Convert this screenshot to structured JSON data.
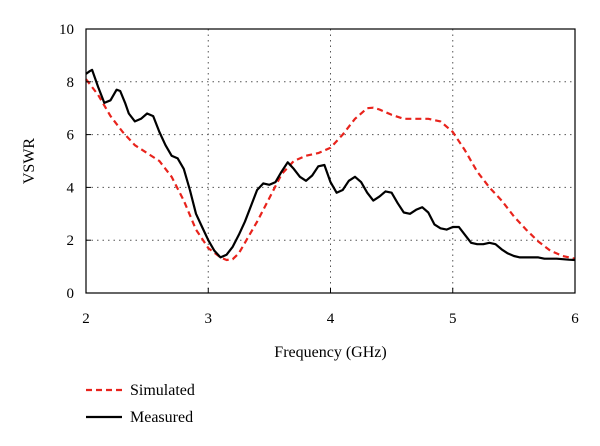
{
  "chart_data": {
    "type": "line",
    "title": "",
    "xlabel": "Frequency (GHz)",
    "ylabel": "VSWR",
    "xlim": [
      2,
      6
    ],
    "ylim": [
      0,
      10
    ],
    "xticks": [
      2,
      3,
      4,
      5,
      6
    ],
    "yticks": [
      0,
      2,
      4,
      6,
      8,
      10
    ],
    "grid": true,
    "legend_position": "bottom-left",
    "series": [
      {
        "name": "Simulated",
        "color": "#e8231c",
        "dash": "dashed",
        "x": [
          2.0,
          2.1,
          2.2,
          2.3,
          2.4,
          2.5,
          2.6,
          2.7,
          2.8,
          2.9,
          3.0,
          3.1,
          3.15,
          3.2,
          3.25,
          3.3,
          3.4,
          3.5,
          3.6,
          3.7,
          3.8,
          3.9,
          4.0,
          4.1,
          4.2,
          4.3,
          4.35,
          4.4,
          4.5,
          4.6,
          4.7,
          4.8,
          4.9,
          5.0,
          5.1,
          5.2,
          5.3,
          5.4,
          5.5,
          5.6,
          5.7,
          5.8,
          5.9,
          6.0
        ],
        "y": [
          8.1,
          7.5,
          6.7,
          6.1,
          5.6,
          5.3,
          5.0,
          4.4,
          3.5,
          2.4,
          1.7,
          1.35,
          1.25,
          1.28,
          1.5,
          1.9,
          2.7,
          3.6,
          4.5,
          5.0,
          5.2,
          5.3,
          5.5,
          6.0,
          6.6,
          7.0,
          7.02,
          6.95,
          6.75,
          6.6,
          6.6,
          6.6,
          6.5,
          6.1,
          5.4,
          4.6,
          4.0,
          3.5,
          2.9,
          2.4,
          1.95,
          1.6,
          1.4,
          1.3
        ]
      },
      {
        "name": "Measured",
        "color": "#000000",
        "dash": "solid",
        "x": [
          2.0,
          2.03,
          2.05,
          2.1,
          2.15,
          2.2,
          2.25,
          2.28,
          2.32,
          2.35,
          2.4,
          2.45,
          2.5,
          2.55,
          2.6,
          2.65,
          2.7,
          2.75,
          2.8,
          2.85,
          2.9,
          2.95,
          3.0,
          3.05,
          3.1,
          3.15,
          3.2,
          3.25,
          3.3,
          3.35,
          3.4,
          3.45,
          3.5,
          3.55,
          3.6,
          3.65,
          3.7,
          3.75,
          3.8,
          3.85,
          3.9,
          3.95,
          4.0,
          4.05,
          4.1,
          4.15,
          4.2,
          4.25,
          4.3,
          4.35,
          4.4,
          4.45,
          4.5,
          4.55,
          4.6,
          4.65,
          4.7,
          4.75,
          4.8,
          4.85,
          4.9,
          4.95,
          5.0,
          5.05,
          5.1,
          5.15,
          5.2,
          5.25,
          5.3,
          5.35,
          5.4,
          5.45,
          5.5,
          5.55,
          5.6,
          5.65,
          5.7,
          5.75,
          5.8,
          5.85,
          5.9,
          5.95,
          6.0
        ],
        "y": [
          8.3,
          8.4,
          8.45,
          7.8,
          7.2,
          7.3,
          7.7,
          7.65,
          7.2,
          6.8,
          6.5,
          6.6,
          6.8,
          6.7,
          6.1,
          5.6,
          5.2,
          5.1,
          4.7,
          3.9,
          3.0,
          2.5,
          2.0,
          1.6,
          1.35,
          1.45,
          1.75,
          2.2,
          2.7,
          3.3,
          3.9,
          4.15,
          4.1,
          4.2,
          4.6,
          4.95,
          4.7,
          4.4,
          4.25,
          4.45,
          4.8,
          4.85,
          4.2,
          3.8,
          3.9,
          4.25,
          4.4,
          4.2,
          3.8,
          3.5,
          3.65,
          3.85,
          3.8,
          3.4,
          3.05,
          3.0,
          3.15,
          3.25,
          3.05,
          2.6,
          2.45,
          2.4,
          2.5,
          2.5,
          2.2,
          1.9,
          1.85,
          1.85,
          1.9,
          1.85,
          1.65,
          1.5,
          1.4,
          1.35,
          1.35,
          1.35,
          1.35,
          1.3,
          1.3,
          1.3,
          1.28,
          1.26,
          1.25
        ]
      }
    ]
  }
}
